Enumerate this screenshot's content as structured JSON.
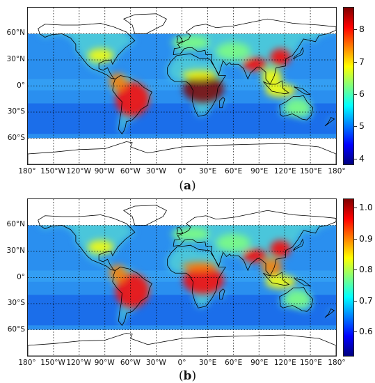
{
  "panels": [
    {
      "id": "a",
      "caption_open": "(",
      "caption_letter": "a",
      "caption_close": ")",
      "colorbar": {
        "min": 3.8,
        "max": 8.7,
        "ticks": [
          "8",
          "7",
          "6",
          "5",
          "4"
        ],
        "tick_values": [
          8,
          7,
          6,
          5,
          4
        ]
      }
    },
    {
      "id": "b",
      "caption_open": "(",
      "caption_letter": "b",
      "caption_close": ")",
      "colorbar": {
        "min": 0.52,
        "max": 1.03,
        "ticks": [
          "1.0",
          "0.9",
          "0.8",
          "0.7",
          "0.6"
        ],
        "tick_values": [
          1.0,
          0.9,
          0.8,
          0.7,
          0.6
        ]
      }
    }
  ],
  "lat_labels": [
    "60°N",
    "30°N",
    "0°",
    "30°S",
    "60°S"
  ],
  "lat_values": [
    60,
    30,
    0,
    -30,
    -60
  ],
  "lon_labels": [
    "180°",
    "150°W",
    "120°W",
    "90°W",
    "60°W",
    "30°W",
    "0°",
    "30°E",
    "60°E",
    "90°E",
    "120°E",
    "150°E",
    "180°"
  ],
  "lon_values": [
    -180,
    -150,
    -120,
    -90,
    -60,
    -30,
    0,
    30,
    60,
    90,
    120,
    150,
    180
  ],
  "colormap": "jet",
  "grid": "dotted",
  "data_lat_range": [
    -60,
    60
  ]
}
